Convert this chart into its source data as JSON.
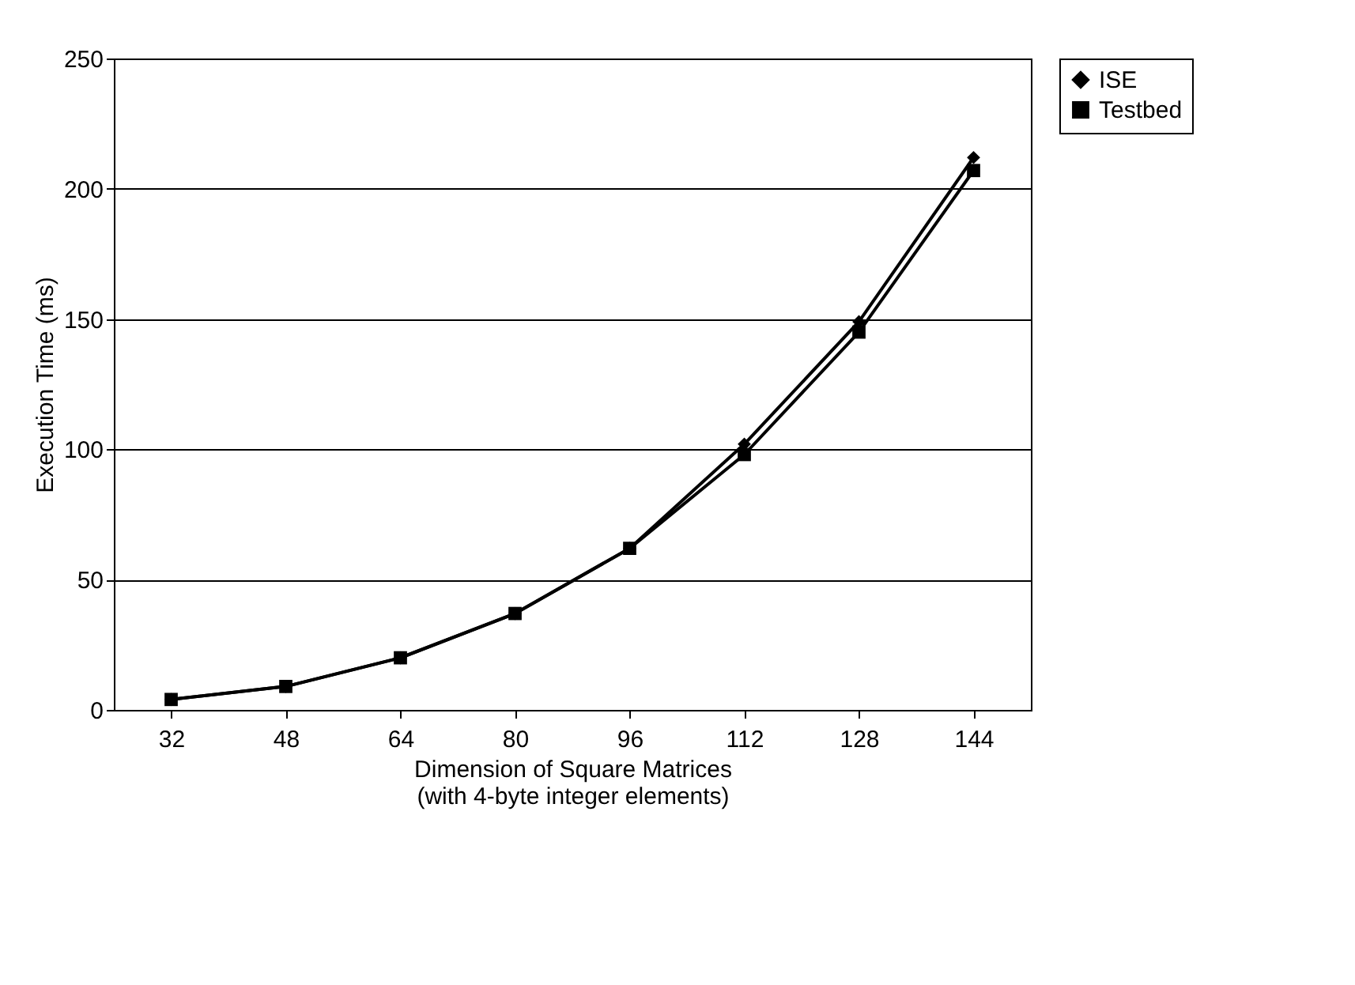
{
  "chart_data": {
    "type": "line",
    "xlabel": "Dimension of Square Matrices\n(with 4-byte integer elements)",
    "ylabel": "Execution Time (ms)",
    "categories": [
      "32",
      "48",
      "64",
      "80",
      "96",
      "112",
      "128",
      "144"
    ],
    "series": [
      {
        "name": "ISE",
        "color": "#000000",
        "marker": "diamond",
        "values": [
          4,
          9,
          20,
          37,
          62,
          102,
          149,
          212
        ]
      },
      {
        "name": "Testbed",
        "color": "#000000",
        "marker": "square",
        "values": [
          4,
          9,
          20,
          37,
          62,
          98,
          145,
          207
        ]
      }
    ],
    "ylim": [
      0,
      250
    ],
    "yticks": [
      0,
      50,
      100,
      150,
      200,
      250
    ],
    "grid": "y",
    "legend": "right",
    "line_style": "solid"
  }
}
